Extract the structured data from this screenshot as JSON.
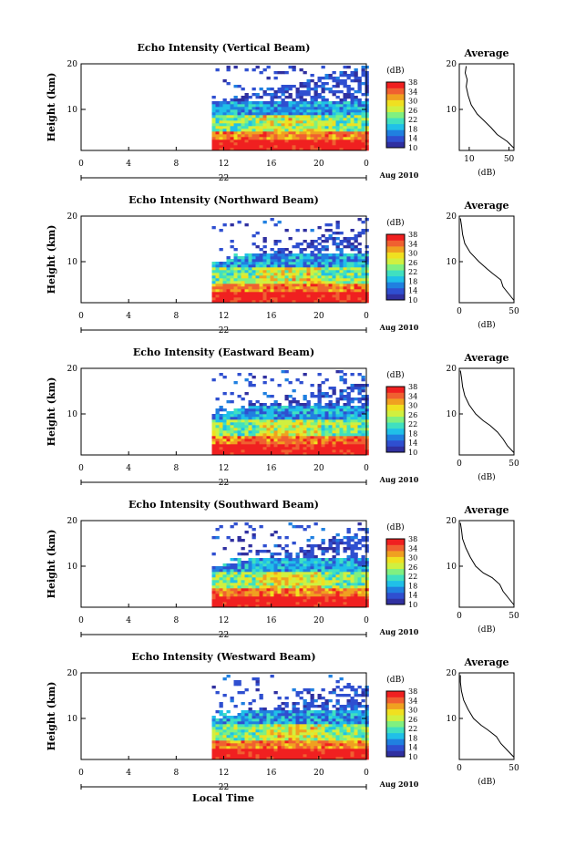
{
  "chart_data": [
    {
      "type": "heatmap",
      "title": "Echo Intensity (Vertical Beam)",
      "ylabel": "Height (km)",
      "y_ticks": [
        "20",
        "10"
      ],
      "x_ticks": [
        "0",
        "4",
        "8",
        "12",
        "16",
        "20",
        "0"
      ],
      "date_day": "22",
      "date_label": "Aug 2010",
      "xlim_hours": [
        0,
        24
      ],
      "ylim_km": [
        1,
        20
      ],
      "data_start_hour": 11,
      "colorbar": {
        "unit": "(dB)",
        "ticks": [
          "38",
          "34",
          "30",
          "26",
          "22",
          "18",
          "14",
          "10"
        ],
        "range": [
          10,
          38
        ]
      },
      "average": {
        "title": "Average",
        "xlabel": "(dB)",
        "x_ticks": [
          "10",
          "50"
        ],
        "xlim": [
          0,
          55
        ],
        "y_ticks": [
          "20",
          "10"
        ],
        "profile": [
          [
            55,
            1.5
          ],
          [
            48,
            3
          ],
          [
            38,
            4.5
          ],
          [
            32,
            6
          ],
          [
            25,
            7.5
          ],
          [
            18,
            9
          ],
          [
            12,
            11
          ],
          [
            9,
            13
          ],
          [
            7,
            15
          ],
          [
            8,
            16.5
          ],
          [
            6,
            18
          ],
          [
            7,
            19.5
          ]
        ]
      }
    },
    {
      "type": "heatmap",
      "title": "Echo Intensity (Northward Beam)",
      "ylabel": "Height (km)",
      "y_ticks": [
        "20",
        "10"
      ],
      "x_ticks": [
        "0",
        "4",
        "8",
        "12",
        "16",
        "20",
        "0"
      ],
      "date_day": "22",
      "date_label": "Aug 2010",
      "xlim_hours": [
        0,
        24
      ],
      "ylim_km": [
        1,
        20
      ],
      "data_start_hour": 11,
      "colorbar": {
        "unit": "(dB)",
        "ticks": [
          "38",
          "34",
          "30",
          "26",
          "22",
          "18",
          "14",
          "10"
        ],
        "range": [
          10,
          38
        ]
      },
      "average": {
        "title": "Average",
        "xlabel": "(dB)",
        "x_ticks": [
          "0",
          "50"
        ],
        "xlim": [
          0,
          50
        ],
        "y_ticks": [
          "20",
          "10"
        ],
        "profile": [
          [
            50,
            1.5
          ],
          [
            45,
            3
          ],
          [
            40,
            4.5
          ],
          [
            38,
            6
          ],
          [
            30,
            7.5
          ],
          [
            25,
            8.5
          ],
          [
            18,
            10
          ],
          [
            10,
            12
          ],
          [
            5,
            14
          ],
          [
            3,
            16
          ],
          [
            2,
            18
          ],
          [
            1,
            19.5
          ]
        ]
      }
    },
    {
      "type": "heatmap",
      "title": "Echo Intensity (Eastward Beam)",
      "ylabel": "Height (km)",
      "y_ticks": [
        "20",
        "10"
      ],
      "x_ticks": [
        "0",
        "4",
        "8",
        "12",
        "16",
        "20",
        "0"
      ],
      "date_day": "22",
      "date_label": "Aug 2010",
      "xlim_hours": [
        0,
        24
      ],
      "ylim_km": [
        1,
        20
      ],
      "data_start_hour": 11,
      "colorbar": {
        "unit": "(dB)",
        "ticks": [
          "38",
          "34",
          "30",
          "26",
          "22",
          "18",
          "14",
          "10"
        ],
        "range": [
          10,
          38
        ]
      },
      "average": {
        "title": "Average",
        "xlabel": "(dB)",
        "x_ticks": [
          "0",
          "50"
        ],
        "xlim": [
          0,
          50
        ],
        "y_ticks": [
          "20",
          "10"
        ],
        "profile": [
          [
            50,
            1.5
          ],
          [
            44,
            3
          ],
          [
            40,
            4.5
          ],
          [
            35,
            6
          ],
          [
            28,
            7.5
          ],
          [
            22,
            8.5
          ],
          [
            15,
            10
          ],
          [
            9,
            12
          ],
          [
            5,
            14
          ],
          [
            3,
            16
          ],
          [
            2,
            18
          ],
          [
            1,
            19.5
          ]
        ]
      }
    },
    {
      "type": "heatmap",
      "title": "Echo Intensity (Southward Beam)",
      "ylabel": "Height (km)",
      "y_ticks": [
        "20",
        "10"
      ],
      "x_ticks": [
        "0",
        "4",
        "8",
        "12",
        "16",
        "20",
        "0"
      ],
      "date_day": "22",
      "date_label": "Aug 2010",
      "xlim_hours": [
        0,
        24
      ],
      "ylim_km": [
        1,
        20
      ],
      "data_start_hour": 11,
      "colorbar": {
        "unit": "(dB)",
        "ticks": [
          "38",
          "34",
          "30",
          "26",
          "22",
          "18",
          "14",
          "10"
        ],
        "range": [
          10,
          38
        ]
      },
      "average": {
        "title": "Average",
        "xlabel": "(dB)",
        "x_ticks": [
          "0",
          "50"
        ],
        "xlim": [
          0,
          50
        ],
        "y_ticks": [
          "20",
          "10"
        ],
        "profile": [
          [
            50,
            1.5
          ],
          [
            45,
            3
          ],
          [
            40,
            4.5
          ],
          [
            37,
            6
          ],
          [
            30,
            7.5
          ],
          [
            22,
            8.5
          ],
          [
            15,
            10
          ],
          [
            10,
            12
          ],
          [
            6,
            14
          ],
          [
            3,
            16
          ],
          [
            2,
            18
          ],
          [
            1,
            19.5
          ]
        ]
      }
    },
    {
      "type": "heatmap",
      "title": "Echo Intensity (Westward Beam)",
      "ylabel": "Height (km)",
      "y_ticks": [
        "20",
        "10"
      ],
      "x_ticks": [
        "0",
        "4",
        "8",
        "12",
        "16",
        "20",
        "0"
      ],
      "date_day": "22",
      "date_label": "Aug 2010",
      "xlim_hours": [
        0,
        24
      ],
      "ylim_km": [
        1,
        20
      ],
      "data_start_hour": 11,
      "colorbar": {
        "unit": "(dB)",
        "ticks": [
          "38",
          "34",
          "30",
          "26",
          "22",
          "18",
          "14",
          "10"
        ],
        "range": [
          10,
          38
        ]
      },
      "average": {
        "title": "Average",
        "xlabel": "(dB)",
        "x_ticks": [
          "0",
          "50"
        ],
        "xlim": [
          0,
          50
        ],
        "y_ticks": [
          "20",
          "10"
        ],
        "profile": [
          [
            50,
            1.5
          ],
          [
            44,
            3
          ],
          [
            38,
            4.5
          ],
          [
            34,
            6
          ],
          [
            26,
            7.5
          ],
          [
            20,
            8.5
          ],
          [
            13,
            10
          ],
          [
            8,
            12
          ],
          [
            4,
            14
          ],
          [
            2,
            16
          ],
          [
            1,
            18
          ],
          [
            1,
            19.5
          ]
        ]
      }
    }
  ],
  "xlabel": "Local Time",
  "colormap": [
    "#3030a0",
    "#2f4fd0",
    "#2080e0",
    "#20c0e8",
    "#40e0c0",
    "#80f080",
    "#d0f040",
    "#f0e020",
    "#f0a020",
    "#f06030",
    "#f02020"
  ]
}
